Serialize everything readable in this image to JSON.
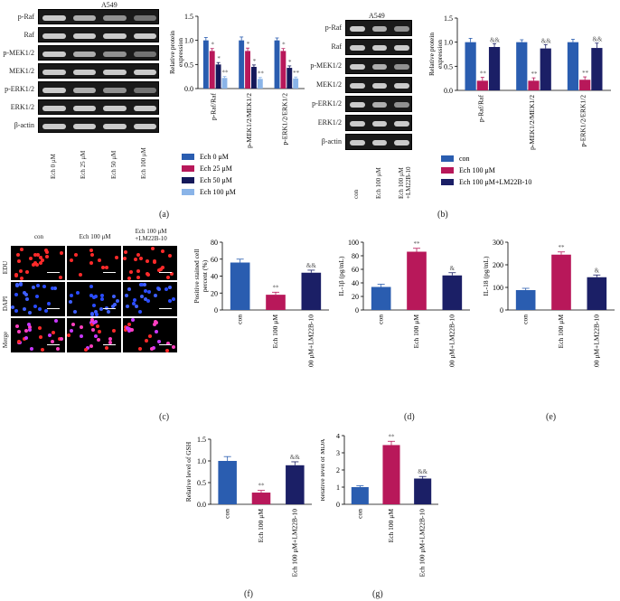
{
  "panel_a": {
    "cell_line": "A549",
    "bands": [
      "p-Raf",
      "Raf",
      "p-MEK1/2",
      "MEK1/2",
      "p-ERK1/2",
      "ERK1/2",
      "β-actin"
    ],
    "lanes": [
      "Ech 0 μM",
      "Ech 25 μM",
      "Ech 50 μM",
      "Ech 100 μM"
    ],
    "tag": "(a)"
  },
  "panel_b": {
    "cell_line": "A549",
    "bands": [
      "p-Raf",
      "Raf",
      "p-MEK1/2",
      "MEK1/2",
      "p-ERK1/2",
      "ERK1/2",
      "β-actin"
    ],
    "lanes": [
      "con",
      "Ech 100 μM",
      "Ech 100 μM\n+LM22B-10"
    ],
    "tag": "(b)"
  },
  "panel_c": {
    "cols": [
      "con",
      "Ech 100 μM",
      "Ech 100 μM\n+LM22B-10"
    ],
    "rows": [
      "EDU",
      "DAPI",
      "Merge"
    ],
    "tag": "(c)"
  },
  "tags": {
    "d": "(d)",
    "e": "(e)",
    "f": "(f)",
    "g": "(g)"
  },
  "colors": {
    "con": "#2a5db0",
    "ech25": "#b8185a",
    "ech50": "#14185a",
    "ech100": "#8ab4e8",
    "lm": "#1b1f66"
  },
  "chart_data": [
    {
      "id": "a",
      "type": "bar",
      "ylabel": "Relative protein expression",
      "ylim": [
        0,
        1.5
      ],
      "yticks": [
        "0.0",
        "0.5",
        "1.0",
        "1.5"
      ],
      "categories": [
        "p-Raf/Raf",
        "p-MEK1/2/MEK1/2",
        "p-ERK1/2/ERK1/2"
      ],
      "series": [
        {
          "name": "Ech 0 μM",
          "values": [
            1.0,
            1.0,
            1.0
          ],
          "err": [
            0.06,
            0.07,
            0.05
          ],
          "marks": [
            "",
            "",
            ""
          ]
        },
        {
          "name": "Ech 25 μM",
          "values": [
            0.78,
            0.78,
            0.78
          ],
          "err": [
            0.05,
            0.06,
            0.05
          ],
          "marks": [
            "*",
            "*",
            "*"
          ]
        },
        {
          "name": "Ech 50 μM",
          "values": [
            0.5,
            0.45,
            0.43
          ],
          "err": [
            0.04,
            0.04,
            0.04
          ],
          "marks": [
            "*",
            "*",
            "*"
          ]
        },
        {
          "name": "Ech 100 μM",
          "values": [
            0.22,
            0.2,
            0.21
          ],
          "err": [
            0.03,
            0.03,
            0.03
          ],
          "marks": [
            "**",
            "**",
            "**"
          ]
        }
      ]
    },
    {
      "id": "b",
      "type": "bar",
      "ylabel": "Relative protein expression",
      "ylim": [
        0,
        1.5
      ],
      "yticks": [
        "0.0",
        "0.5",
        "1.0",
        "1.5"
      ],
      "categories": [
        "p-Raf/Raf",
        "p-MEK1/2/MEK1/2",
        "p-ERK1/2/ERK1/2"
      ],
      "series": [
        {
          "name": "con",
          "values": [
            1.0,
            1.0,
            1.0
          ],
          "err": [
            0.08,
            0.05,
            0.06
          ],
          "marks": [
            "",
            "",
            ""
          ]
        },
        {
          "name": "Ech 100 μM",
          "values": [
            0.2,
            0.2,
            0.22
          ],
          "err": [
            0.07,
            0.06,
            0.06
          ],
          "marks": [
            "**",
            "**",
            "**"
          ]
        },
        {
          "name": "Ech 100 μM+LM22B-10",
          "values": [
            0.9,
            0.87,
            0.88
          ],
          "err": [
            0.07,
            0.08,
            0.1
          ],
          "marks": [
            "&&",
            "&&",
            "&&"
          ]
        }
      ]
    },
    {
      "id": "c",
      "type": "bar",
      "ylabel": "Positive stained cell percent (%)",
      "ylim": [
        0,
        80
      ],
      "yticks": [
        "0",
        "20",
        "40",
        "60",
        "80"
      ],
      "categories": [
        "con",
        "Ech 100 μM",
        "Ech 100 μM+LM22B-10"
      ],
      "values": [
        56,
        18,
        44
      ],
      "err": [
        4,
        3,
        3
      ],
      "marks": [
        "",
        "**",
        "&&"
      ]
    },
    {
      "id": "d",
      "type": "bar",
      "ylabel": "IL-1β (pg/mL)",
      "ylim": [
        0,
        100
      ],
      "yticks": [
        "0",
        "20",
        "40",
        "60",
        "80",
        "100"
      ],
      "categories": [
        "con",
        "Ech 100 μM",
        "Ech 100 μM+LM22B-10"
      ],
      "values": [
        34,
        86,
        51
      ],
      "err": [
        4,
        5,
        4
      ],
      "marks": [
        "",
        "**",
        "&"
      ]
    },
    {
      "id": "e",
      "type": "bar",
      "ylabel": "IL-18 (pg/mL)",
      "ylim": [
        0,
        300
      ],
      "yticks": [
        "0",
        "100",
        "200",
        "300"
      ],
      "categories": [
        "con",
        "Ech 100 μM",
        "Ech 100 μM+LM22B-10"
      ],
      "values": [
        88,
        245,
        145
      ],
      "err": [
        8,
        12,
        10
      ],
      "marks": [
        "",
        "**",
        "&"
      ]
    },
    {
      "id": "f",
      "type": "bar",
      "ylabel": "Relative level of GSH",
      "ylim": [
        0,
        1.5
      ],
      "yticks": [
        "0.0",
        "0.5",
        "1.0",
        "1.5"
      ],
      "categories": [
        "con",
        "Ech 100 μM",
        "Ech 100 μM+LM22B-10"
      ],
      "values": [
        1.0,
        0.27,
        0.9
      ],
      "err": [
        0.1,
        0.05,
        0.08
      ],
      "marks": [
        "",
        "**",
        "&&"
      ]
    },
    {
      "id": "g",
      "type": "bar",
      "ylabel": "Relative level of MDA",
      "ylim": [
        0,
        4
      ],
      "yticks": [
        "0",
        "1",
        "2",
        "3",
        "4"
      ],
      "categories": [
        "con",
        "Ech 100 μM",
        "Ech 100 μM+LM22B-10"
      ],
      "values": [
        1.0,
        3.45,
        1.5
      ],
      "err": [
        0.08,
        0.22,
        0.12
      ],
      "marks": [
        "",
        "**",
        "&&"
      ]
    }
  ]
}
